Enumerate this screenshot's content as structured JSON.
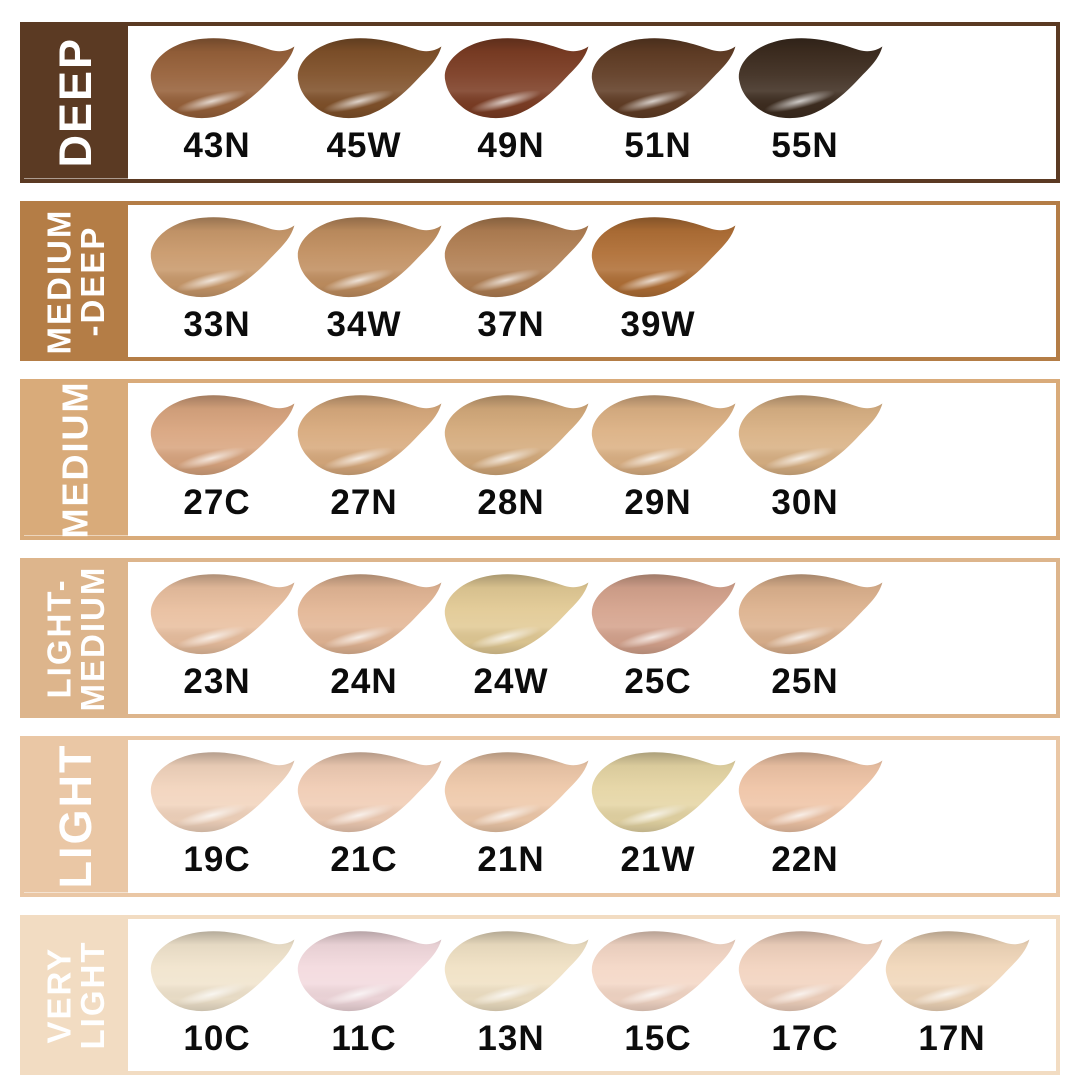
{
  "page": {
    "background": "#ffffff",
    "description": "Foundation shade range chart with six depth categories and smear swatches"
  },
  "chart_data": {
    "type": "table",
    "title": "",
    "legend_position": "left-rotated-category-labels",
    "rows": [
      {
        "category": "DEEP",
        "label_lines": [
          "DEEP"
        ],
        "color": "#5b3a23",
        "shades": [
          {
            "code": "43N",
            "hex": "#97613a"
          },
          {
            "code": "45W",
            "hex": "#80512a"
          },
          {
            "code": "49N",
            "hex": "#7c3d24"
          },
          {
            "code": "51N",
            "hex": "#613d25"
          },
          {
            "code": "55N",
            "hex": "#3e2d20"
          }
        ]
      },
      {
        "category": "MEDIUM-DEEP",
        "label_lines": [
          "MEDIUM",
          "-DEEP"
        ],
        "color": "#b47d46",
        "shades": [
          {
            "code": "33N",
            "hex": "#c9996b"
          },
          {
            "code": "34W",
            "hex": "#c18f60"
          },
          {
            "code": "37N",
            "hex": "#b17f53"
          },
          {
            "code": "39W",
            "hex": "#b06f36"
          }
        ]
      },
      {
        "category": "MEDIUM",
        "label_lines": [
          "MEDIUM"
        ],
        "color": "#d9ab7a",
        "shades": [
          {
            "code": "27C",
            "hex": "#d9a57f"
          },
          {
            "code": "27N",
            "hex": "#d8aa7d"
          },
          {
            "code": "28N",
            "hex": "#d4aa7b"
          },
          {
            "code": "29N",
            "hex": "#dcb184"
          },
          {
            "code": "30N",
            "hex": "#d9b184"
          }
        ]
      },
      {
        "category": "LIGHT-MEDIUM",
        "label_lines": [
          "LIGHT-",
          "MEDIUM"
        ],
        "color": "#ddb58c",
        "shades": [
          {
            "code": "23N",
            "hex": "#e9bf9f"
          },
          {
            "code": "24N",
            "hex": "#e3b695"
          },
          {
            "code": "24W",
            "hex": "#e2ca95"
          },
          {
            "code": "25C",
            "hex": "#d5a38d"
          },
          {
            "code": "25N",
            "hex": "#ddb28e"
          }
        ]
      },
      {
        "category": "LIGHT",
        "label_lines": [
          "LIGHT"
        ],
        "color": "#eac7a5",
        "shades": [
          {
            "code": "19C",
            "hex": "#f2d4bd"
          },
          {
            "code": "21C",
            "hex": "#f0ccb4"
          },
          {
            "code": "21N",
            "hex": "#eec8a9"
          },
          {
            "code": "21W",
            "hex": "#e5d5a4"
          },
          {
            "code": "22N",
            "hex": "#efc4a6"
          }
        ]
      },
      {
        "category": "VERY LIGHT",
        "label_lines": [
          "VERY",
          "LIGHT"
        ],
        "color": "#f2dcc2",
        "shades": [
          {
            "code": "10C",
            "hex": "#f1e4cd"
          },
          {
            "code": "11C",
            "hex": "#f3dade"
          },
          {
            "code": "13N",
            "hex": "#f0e1c4"
          },
          {
            "code": "15C",
            "hex": "#f4d7c6"
          },
          {
            "code": "17C",
            "hex": "#f2d3bf"
          },
          {
            "code": "17N",
            "hex": "#f1d7ba"
          }
        ]
      }
    ]
  }
}
